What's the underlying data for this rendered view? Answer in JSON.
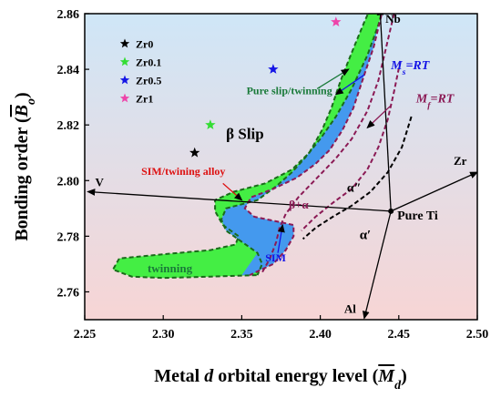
{
  "chart_data": {
    "type": "scatter",
    "xlabel": "Metal d orbital energy level (Md)",
    "xlabel_parts": {
      "prefix": "Metal ",
      "italic": "d",
      "middle": " orbital energy level (",
      "symbol": "M",
      "subscript": "d",
      "suffix": ")"
    },
    "ylabel": "Bonding order (Bo)",
    "ylabel_parts": {
      "prefix": "Bonding order (",
      "symbol": "B",
      "subscript": "o",
      "suffix": ")"
    },
    "xlim": [
      2.25,
      2.5
    ],
    "ylim": [
      2.75,
      2.86
    ],
    "xticks": [
      "2.25",
      "2.30",
      "2.35",
      "2.40",
      "2.45",
      "2.50"
    ],
    "yticks": [
      "2.76",
      "2.78",
      "2.80",
      "2.82",
      "2.84",
      "2.86"
    ],
    "background": {
      "top_color": "#cfe6f7",
      "bottom_color": "#f7d5d5"
    },
    "series": [
      {
        "name": "Zr0",
        "color": "#000000",
        "marker": "star",
        "points": [
          [
            2.32,
            2.81
          ]
        ]
      },
      {
        "name": "Zr0.1",
        "color": "#33dd33",
        "marker": "star",
        "points": [
          [
            2.33,
            2.82
          ]
        ]
      },
      {
        "name": "Zr0.5",
        "color": "#1414e6",
        "marker": "star",
        "points": [
          [
            2.37,
            2.84
          ]
        ]
      },
      {
        "name": "Zr1",
        "color": "#ee44aa",
        "marker": "star",
        "points": [
          [
            2.41,
            2.857
          ]
        ]
      }
    ],
    "legend": {
      "position": "top-left"
    },
    "regions": [
      {
        "id": "green",
        "color": "#44ee44",
        "points": [
          [
            2.44,
            2.862
          ],
          [
            2.437,
            2.856
          ],
          [
            2.43,
            2.845
          ],
          [
            2.42,
            2.833
          ],
          [
            2.41,
            2.823
          ],
          [
            2.4,
            2.815
          ],
          [
            2.39,
            2.808
          ],
          [
            2.382,
            2.803
          ],
          [
            2.372,
            2.798
          ],
          [
            2.36,
            2.793
          ],
          [
            2.34,
            2.79
          ],
          [
            2.337,
            2.786
          ],
          [
            2.34,
            2.782
          ],
          [
            2.35,
            2.778
          ],
          [
            2.36,
            2.774
          ],
          [
            2.363,
            2.77
          ],
          [
            2.36,
            2.766
          ],
          [
            2.33,
            2.7655
          ],
          [
            2.3,
            2.765
          ],
          [
            2.28,
            2.7655
          ],
          [
            2.268,
            2.768
          ],
          [
            2.272,
            2.772
          ],
          [
            2.3,
            2.7735
          ],
          [
            2.33,
            2.775
          ],
          [
            2.346,
            2.777
          ],
          [
            2.348,
            2.78
          ],
          [
            2.338,
            2.784
          ],
          [
            2.333,
            2.789
          ],
          [
            2.333,
            2.793
          ],
          [
            2.345,
            2.796
          ],
          [
            2.365,
            2.799
          ],
          [
            2.382,
            2.804
          ],
          [
            2.393,
            2.81
          ],
          [
            2.401,
            2.818
          ],
          [
            2.407,
            2.826
          ],
          [
            2.413,
            2.836
          ],
          [
            2.42,
            2.846
          ],
          [
            2.428,
            2.857
          ],
          [
            2.432,
            2.862
          ]
        ]
      },
      {
        "id": "blue",
        "color": "#4499ee",
        "points": [
          [
            2.44,
            2.862
          ],
          [
            2.437,
            2.856
          ],
          [
            2.434,
            2.848
          ],
          [
            2.428,
            2.838
          ],
          [
            2.421,
            2.826
          ],
          [
            2.414,
            2.818
          ],
          [
            2.406,
            2.811
          ],
          [
            2.397,
            2.806
          ],
          [
            2.385,
            2.801
          ],
          [
            2.37,
            2.797
          ],
          [
            2.356,
            2.794
          ],
          [
            2.352,
            2.79
          ],
          [
            2.358,
            2.787
          ],
          [
            2.375,
            2.785
          ],
          [
            2.383,
            2.784
          ],
          [
            2.383,
            2.78
          ],
          [
            2.378,
            2.775
          ],
          [
            2.37,
            2.77
          ],
          [
            2.355,
            2.766
          ],
          [
            2.35,
            2.766
          ],
          [
            2.36,
            2.774
          ],
          [
            2.35,
            2.778
          ],
          [
            2.34,
            2.782
          ],
          [
            2.337,
            2.786
          ],
          [
            2.34,
            2.79
          ],
          [
            2.36,
            2.793
          ],
          [
            2.372,
            2.798
          ],
          [
            2.382,
            2.803
          ],
          [
            2.39,
            2.808
          ],
          [
            2.4,
            2.815
          ],
          [
            2.41,
            2.823
          ],
          [
            2.42,
            2.833
          ],
          [
            2.43,
            2.845
          ],
          [
            2.437,
            2.856
          ]
        ]
      }
    ],
    "dashed_lines": [
      {
        "id": "green-top-outline",
        "color": "#1a6b1a",
        "points": [
          [
            2.432,
            2.862
          ],
          [
            2.428,
            2.857
          ],
          [
            2.42,
            2.846
          ],
          [
            2.413,
            2.836
          ],
          [
            2.407,
            2.826
          ],
          [
            2.401,
            2.818
          ],
          [
            2.393,
            2.81
          ],
          [
            2.382,
            2.804
          ],
          [
            2.365,
            2.799
          ],
          [
            2.345,
            2.796
          ],
          [
            2.333,
            2.793
          ],
          [
            2.333,
            2.789
          ],
          [
            2.338,
            2.784
          ],
          [
            2.348,
            2.78
          ],
          [
            2.346,
            2.777
          ],
          [
            2.33,
            2.775
          ],
          [
            2.3,
            2.7735
          ],
          [
            2.272,
            2.772
          ],
          [
            2.268,
            2.768
          ],
          [
            2.28,
            2.7655
          ],
          [
            2.3,
            2.765
          ],
          [
            2.33,
            2.7655
          ],
          [
            2.36,
            2.766
          ]
        ]
      },
      {
        "id": "green-bottom-outline",
        "color": "#1a6b1a",
        "points": [
          [
            2.44,
            2.862
          ],
          [
            2.437,
            2.856
          ],
          [
            2.43,
            2.845
          ],
          [
            2.42,
            2.833
          ],
          [
            2.41,
            2.823
          ],
          [
            2.4,
            2.815
          ],
          [
            2.39,
            2.808
          ],
          [
            2.382,
            2.803
          ],
          [
            2.372,
            2.798
          ],
          [
            2.36,
            2.793
          ],
          [
            2.34,
            2.79
          ],
          [
            2.337,
            2.786
          ],
          [
            2.34,
            2.782
          ],
          [
            2.35,
            2.778
          ],
          [
            2.36,
            2.774
          ],
          [
            2.363,
            2.77
          ],
          [
            2.36,
            2.766
          ]
        ]
      },
      {
        "id": "blue-outline",
        "color": "#8b1a55",
        "points": [
          [
            2.44,
            2.862
          ],
          [
            2.434,
            2.848
          ],
          [
            2.428,
            2.838
          ],
          [
            2.421,
            2.826
          ],
          [
            2.414,
            2.818
          ],
          [
            2.406,
            2.811
          ],
          [
            2.397,
            2.806
          ],
          [
            2.385,
            2.801
          ],
          [
            2.37,
            2.797
          ],
          [
            2.356,
            2.794
          ],
          [
            2.352,
            2.79
          ],
          [
            2.358,
            2.787
          ],
          [
            2.375,
            2.785
          ],
          [
            2.383,
            2.784
          ],
          [
            2.383,
            2.78
          ],
          [
            2.378,
            2.775
          ],
          [
            2.37,
            2.77
          ],
          [
            2.355,
            2.766
          ]
        ]
      },
      {
        "id": "ms-line",
        "color": "#8b1a55",
        "points": [
          [
            2.447,
            2.86
          ],
          [
            2.442,
            2.848
          ],
          [
            2.437,
            2.836
          ],
          [
            2.43,
            2.825
          ],
          [
            2.42,
            2.815
          ],
          [
            2.41,
            2.808
          ],
          [
            2.398,
            2.801
          ],
          [
            2.386,
            2.794
          ],
          [
            2.378,
            2.788
          ],
          [
            2.374,
            2.783
          ],
          [
            2.372,
            2.778
          ],
          [
            2.368,
            2.772
          ],
          [
            2.363,
            2.767
          ]
        ]
      },
      {
        "id": "mf-line",
        "color": "#8b1a55",
        "points": [
          [
            2.451,
            2.843
          ],
          [
            2.447,
            2.832
          ],
          [
            2.443,
            2.822
          ],
          [
            2.437,
            2.812
          ],
          [
            2.43,
            2.804
          ],
          [
            2.42,
            2.797
          ],
          [
            2.408,
            2.792
          ],
          [
            2.397,
            2.787
          ],
          [
            2.388,
            2.782
          ]
        ]
      },
      {
        "id": "alpha-line",
        "color": "#000000",
        "points": [
          [
            2.458,
            2.823
          ],
          [
            2.452,
            2.812
          ],
          [
            2.443,
            2.803
          ],
          [
            2.432,
            2.796
          ],
          [
            2.42,
            2.791
          ],
          [
            2.408,
            2.787
          ],
          [
            2.397,
            2.783
          ],
          [
            2.389,
            2.779
          ]
        ]
      }
    ],
    "vectors": {
      "origin": [
        2.445,
        2.789
      ],
      "targets": [
        {
          "label": "V",
          "to": [
            2.252,
            2.796
          ]
        },
        {
          "label": "Nb",
          "to": [
            2.438,
            2.862
          ]
        },
        {
          "label": "Zr",
          "to": [
            2.5,
            2.803
          ]
        },
        {
          "label": "Al",
          "to": [
            2.428,
            2.7505
          ]
        }
      ]
    },
    "annotations": [
      {
        "id": "pure-ti",
        "text": "Pure Ti",
        "x": 2.449,
        "y": 2.786,
        "color": "#000000",
        "size": 14
      },
      {
        "id": "beta-slip",
        "text": "β   Slip",
        "x": 2.34,
        "y": 2.815,
        "color": "#000000",
        "size": 17
      },
      {
        "id": "pure-slip",
        "text": "Pure slip/twinning",
        "x": 2.353,
        "y": 2.831,
        "color": "#1a7a3a",
        "size": 12
      },
      {
        "id": "ms-rt",
        "text": "Ms=RT",
        "x": 2.445,
        "y": 2.84,
        "color": "#1414e6",
        "size": 14
      },
      {
        "id": "mf-rt",
        "text": "Mf=RT",
        "x": 2.461,
        "y": 2.828,
        "color": "#8b1a55",
        "size": 14
      },
      {
        "id": "sim-twin",
        "text": "SIM/twining alloy",
        "x": 2.286,
        "y": 2.802,
        "color": "#dd1111",
        "size": 12
      },
      {
        "id": "beta-alpha",
        "text": "β+α",
        "x": 2.38,
        "y": 2.79,
        "color": "#8b1a55",
        "size": 13
      },
      {
        "id": "alpha-dprime",
        "text": "α″",
        "x": 2.417,
        "y": 2.796,
        "color": "#000000",
        "size": 14
      },
      {
        "id": "alpha-prime",
        "text": "α′",
        "x": 2.425,
        "y": 2.779,
        "color": "#000000",
        "size": 15
      },
      {
        "id": "twinning",
        "text": "twinning",
        "x": 2.29,
        "y": 2.767,
        "color": "#1a7a3a",
        "size": 13
      },
      {
        "id": "sim",
        "text": "SIM",
        "x": 2.365,
        "y": 2.771,
        "color": "#1414e6",
        "size": 12
      }
    ]
  }
}
